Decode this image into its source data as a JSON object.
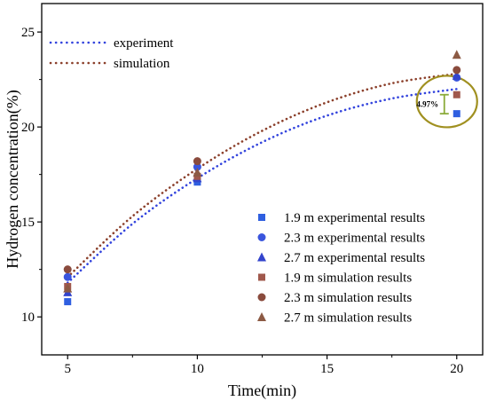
{
  "chart_data": {
    "type": "scatter",
    "xlabel": "Time(min)",
    "ylabel": "Hydrogen concentration(%)",
    "xlim": [
      4,
      21
    ],
    "ylim": [
      8,
      26.5
    ],
    "xticks": [
      5,
      10,
      15,
      20
    ],
    "yticks": [
      10,
      15,
      20,
      25
    ],
    "grid": false,
    "legend_placement": "bottom-right",
    "curve_legend_placement": "top-left",
    "curves": [
      {
        "name": "experiment",
        "color": "#3344dd",
        "x": [
          5,
          7.5,
          10,
          12.5,
          15,
          17.5,
          20
        ],
        "y": [
          11.8,
          14.9,
          17.3,
          19.2,
          20.6,
          21.5,
          22.0
        ]
      },
      {
        "name": "simulation",
        "color": "#8b3f2a",
        "x": [
          5,
          7.5,
          10,
          12.5,
          15,
          17.5,
          20
        ],
        "y": [
          12.1,
          15.3,
          17.8,
          19.8,
          21.3,
          22.3,
          22.8
        ]
      }
    ],
    "series": [
      {
        "name": "1.9 m experimental results",
        "marker": "square",
        "color": "#2f5fe0",
        "x": [
          5,
          10,
          20
        ],
        "y": [
          10.8,
          17.1,
          20.7
        ]
      },
      {
        "name": "2.3 m experimental results",
        "marker": "circle",
        "color": "#3a55dd",
        "x": [
          5,
          10,
          20
        ],
        "y": [
          12.1,
          17.9,
          22.6
        ]
      },
      {
        "name": "2.7 m experimental results",
        "marker": "triangle",
        "color": "#3344cc",
        "x": [
          5,
          10,
          20
        ],
        "y": [
          11.3,
          17.3,
          22.7
        ]
      },
      {
        "name": "1.9 m simulation results",
        "marker": "square",
        "color": "#a0584c",
        "x": [
          5,
          10,
          20
        ],
        "y": [
          11.6,
          17.4,
          21.7
        ]
      },
      {
        "name": "2.3 m simulation results",
        "marker": "circle",
        "color": "#8a4b3d",
        "x": [
          5,
          10,
          20
        ],
        "y": [
          12.5,
          18.2,
          23.0
        ]
      },
      {
        "name": "2.7 m simulation results",
        "marker": "triangle",
        "color": "#8c5a44",
        "x": [
          5,
          10,
          20
        ],
        "y": [
          11.5,
          17.6,
          23.8
        ]
      }
    ],
    "annotation": {
      "text": "4.97%",
      "x": 20,
      "y_low": 20.7,
      "y_high": 21.7,
      "circle_color": "#a09020",
      "bar_color": "#8bab3a"
    }
  }
}
